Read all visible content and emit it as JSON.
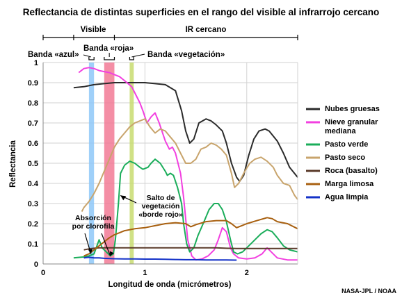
{
  "chart_data": {
    "type": "line",
    "title": "Reflectancia de distintas superficies en el rango del visible al infrarrojo cercano",
    "xlabel": "Longitud de onda (micrómetros)",
    "ylabel": "Reflectancia",
    "xlim": [
      0,
      2.5
    ],
    "ylim": [
      0,
      1
    ],
    "x_ticks": [
      "0",
      "1",
      "2"
    ],
    "y_ticks": [
      "0",
      "0.1",
      "0.2",
      "0.3",
      "0.4",
      "0.5",
      "0.6",
      "0.7",
      "0.8",
      "0.9",
      "1"
    ],
    "grid": true,
    "legend_position": "right",
    "regions": [
      {
        "label": "Visible",
        "from": 0.0,
        "to": 0.7
      },
      {
        "label": "IR cercano",
        "from": 0.7,
        "to": 2.5
      }
    ],
    "bands": [
      {
        "label": "Banda «azul»",
        "from": 0.45,
        "to": 0.5,
        "color": "#8ec8f8"
      },
      {
        "label": "Banda «roja»",
        "from": 0.6,
        "to": 0.7,
        "color": "#f27a95"
      },
      {
        "label": "Banda «vegetación»",
        "from": 0.85,
        "to": 0.89,
        "color": "#c8dc70"
      }
    ],
    "annotations": [
      {
        "text": [
          "Salto de",
          "vegetación",
          "«borde rojo»"
        ]
      },
      {
        "text": [
          "Absorción",
          "por clorofila"
        ]
      }
    ],
    "series": [
      {
        "name": "Nubes gruesas",
        "color": "#2b2b2b",
        "points": [
          [
            0.3,
            0.875
          ],
          [
            0.4,
            0.88
          ],
          [
            0.5,
            0.89
          ],
          [
            0.6,
            0.895
          ],
          [
            0.7,
            0.9
          ],
          [
            0.8,
            0.9
          ],
          [
            0.9,
            0.9
          ],
          [
            1.0,
            0.9
          ],
          [
            1.1,
            0.895
          ],
          [
            1.2,
            0.89
          ],
          [
            1.3,
            0.86
          ],
          [
            1.36,
            0.76
          ],
          [
            1.4,
            0.66
          ],
          [
            1.44,
            0.6
          ],
          [
            1.48,
            0.62
          ],
          [
            1.53,
            0.7
          ],
          [
            1.6,
            0.72
          ],
          [
            1.65,
            0.71
          ],
          [
            1.7,
            0.69
          ],
          [
            1.76,
            0.66
          ],
          [
            1.8,
            0.6
          ],
          [
            1.85,
            0.5
          ],
          [
            1.9,
            0.43
          ],
          [
            1.93,
            0.41
          ],
          [
            1.97,
            0.44
          ],
          [
            2.02,
            0.54
          ],
          [
            2.07,
            0.62
          ],
          [
            2.12,
            0.66
          ],
          [
            2.18,
            0.67
          ],
          [
            2.22,
            0.66
          ],
          [
            2.3,
            0.61
          ],
          [
            2.36,
            0.55
          ],
          [
            2.42,
            0.48
          ],
          [
            2.5,
            0.43
          ]
        ]
      },
      {
        "name": "Nieve granular mediana",
        "color": "#f240e0",
        "points": [
          [
            0.35,
            0.95
          ],
          [
            0.4,
            0.97
          ],
          [
            0.45,
            0.975
          ],
          [
            0.5,
            0.97
          ],
          [
            0.55,
            0.96
          ],
          [
            0.6,
            0.955
          ],
          [
            0.65,
            0.95
          ],
          [
            0.7,
            0.94
          ],
          [
            0.75,
            0.93
          ],
          [
            0.8,
            0.91
          ],
          [
            0.87,
            0.88
          ],
          [
            0.95,
            0.8
          ],
          [
            0.98,
            0.76
          ],
          [
            1.02,
            0.7
          ],
          [
            1.06,
            0.73
          ],
          [
            1.1,
            0.75
          ],
          [
            1.14,
            0.7
          ],
          [
            1.2,
            0.61
          ],
          [
            1.24,
            0.57
          ],
          [
            1.27,
            0.58
          ],
          [
            1.3,
            0.55
          ],
          [
            1.35,
            0.45
          ],
          [
            1.38,
            0.33
          ],
          [
            1.42,
            0.12
          ],
          [
            1.46,
            0.04
          ],
          [
            1.5,
            0.02
          ],
          [
            1.56,
            0.025
          ],
          [
            1.62,
            0.04
          ],
          [
            1.68,
            0.07
          ],
          [
            1.72,
            0.12
          ],
          [
            1.76,
            0.18
          ],
          [
            1.8,
            0.16
          ],
          [
            1.84,
            0.08
          ],
          [
            1.87,
            0.05
          ],
          [
            1.92,
            0.03
          ],
          [
            2.0,
            0.025
          ],
          [
            2.08,
            0.03
          ],
          [
            2.15,
            0.05
          ],
          [
            2.2,
            0.08
          ],
          [
            2.24,
            0.06
          ],
          [
            2.3,
            0.03
          ],
          [
            2.4,
            0.02
          ],
          [
            2.5,
            0.02
          ]
        ]
      },
      {
        "name": "Pasto verde",
        "color": "#1aad5a",
        "points": [
          [
            0.3,
            0.03
          ],
          [
            0.4,
            0.035
          ],
          [
            0.45,
            0.04
          ],
          [
            0.5,
            0.05
          ],
          [
            0.55,
            0.12
          ],
          [
            0.58,
            0.08
          ],
          [
            0.62,
            0.06
          ],
          [
            0.66,
            0.04
          ],
          [
            0.69,
            0.05
          ],
          [
            0.71,
            0.12
          ],
          [
            0.74,
            0.3
          ],
          [
            0.76,
            0.45
          ],
          [
            0.8,
            0.49
          ],
          [
            0.85,
            0.51
          ],
          [
            0.9,
            0.5
          ],
          [
            0.95,
            0.48
          ],
          [
            0.98,
            0.47
          ],
          [
            1.03,
            0.48
          ],
          [
            1.06,
            0.5
          ],
          [
            1.1,
            0.52
          ],
          [
            1.15,
            0.5
          ],
          [
            1.2,
            0.46
          ],
          [
            1.22,
            0.44
          ],
          [
            1.25,
            0.45
          ],
          [
            1.28,
            0.44
          ],
          [
            1.32,
            0.38
          ],
          [
            1.36,
            0.3
          ],
          [
            1.38,
            0.2
          ],
          [
            1.41,
            0.1
          ],
          [
            1.44,
            0.06
          ],
          [
            1.48,
            0.08
          ],
          [
            1.52,
            0.14
          ],
          [
            1.58,
            0.21
          ],
          [
            1.63,
            0.27
          ],
          [
            1.68,
            0.3
          ],
          [
            1.72,
            0.3
          ],
          [
            1.76,
            0.27
          ],
          [
            1.8,
            0.21
          ],
          [
            1.84,
            0.12
          ],
          [
            1.87,
            0.06
          ],
          [
            1.91,
            0.05
          ],
          [
            1.96,
            0.06
          ],
          [
            2.02,
            0.09
          ],
          [
            2.08,
            0.12
          ],
          [
            2.14,
            0.15
          ],
          [
            2.2,
            0.17
          ],
          [
            2.25,
            0.16
          ],
          [
            2.3,
            0.13
          ],
          [
            2.36,
            0.09
          ],
          [
            2.42,
            0.07
          ],
          [
            2.5,
            0.06
          ]
        ]
      },
      {
        "name": "Pasto seco",
        "color": "#c8a46c",
        "points": [
          [
            0.38,
            0.26
          ],
          [
            0.4,
            0.28
          ],
          [
            0.45,
            0.31
          ],
          [
            0.5,
            0.35
          ],
          [
            0.55,
            0.4
          ],
          [
            0.6,
            0.46
          ],
          [
            0.65,
            0.52
          ],
          [
            0.7,
            0.58
          ],
          [
            0.75,
            0.62
          ],
          [
            0.8,
            0.65
          ],
          [
            0.85,
            0.68
          ],
          [
            0.9,
            0.7
          ],
          [
            0.95,
            0.71
          ],
          [
            1.0,
            0.72
          ],
          [
            1.05,
            0.68
          ],
          [
            1.1,
            0.65
          ],
          [
            1.15,
            0.67
          ],
          [
            1.2,
            0.66
          ],
          [
            1.25,
            0.63
          ],
          [
            1.3,
            0.6
          ],
          [
            1.35,
            0.55
          ],
          [
            1.4,
            0.5
          ],
          [
            1.45,
            0.5
          ],
          [
            1.5,
            0.52
          ],
          [
            1.55,
            0.57
          ],
          [
            1.6,
            0.58
          ],
          [
            1.65,
            0.6
          ],
          [
            1.7,
            0.59
          ],
          [
            1.75,
            0.57
          ],
          [
            1.8,
            0.54
          ],
          [
            1.85,
            0.45
          ],
          [
            1.88,
            0.38
          ],
          [
            1.92,
            0.4
          ],
          [
            1.98,
            0.46
          ],
          [
            2.03,
            0.5
          ],
          [
            2.08,
            0.52
          ],
          [
            2.14,
            0.53
          ],
          [
            2.2,
            0.51
          ],
          [
            2.26,
            0.48
          ],
          [
            2.3,
            0.44
          ],
          [
            2.36,
            0.4
          ],
          [
            2.42,
            0.39
          ],
          [
            2.47,
            0.34
          ],
          [
            2.5,
            0.32
          ]
        ]
      },
      {
        "name": "Roca (basalto)",
        "color": "#5a3a2a",
        "points": [
          [
            0.4,
            0.07
          ],
          [
            0.45,
            0.075
          ],
          [
            0.5,
            0.078
          ],
          [
            0.55,
            0.08
          ],
          [
            0.6,
            0.08
          ],
          [
            0.7,
            0.08
          ],
          [
            0.8,
            0.08
          ],
          [
            0.9,
            0.08
          ],
          [
            1.0,
            0.08
          ],
          [
            1.1,
            0.08
          ],
          [
            1.2,
            0.08
          ],
          [
            1.3,
            0.08
          ],
          [
            1.4,
            0.08
          ],
          [
            1.5,
            0.08
          ],
          [
            1.6,
            0.08
          ],
          [
            1.7,
            0.08
          ],
          [
            1.8,
            0.078
          ],
          [
            1.9,
            0.077
          ],
          [
            2.0,
            0.077
          ],
          [
            2.1,
            0.077
          ],
          [
            2.2,
            0.077
          ],
          [
            2.3,
            0.077
          ],
          [
            2.4,
            0.077
          ],
          [
            2.5,
            0.077
          ]
        ]
      },
      {
        "name": "Marga limosa",
        "color": "#a86010",
        "points": [
          [
            0.4,
            0.04
          ],
          [
            0.45,
            0.05
          ],
          [
            0.5,
            0.07
          ],
          [
            0.55,
            0.09
          ],
          [
            0.6,
            0.11
          ],
          [
            0.65,
            0.13
          ],
          [
            0.7,
            0.145
          ],
          [
            0.75,
            0.155
          ],
          [
            0.8,
            0.165
          ],
          [
            0.9,
            0.175
          ],
          [
            1.0,
            0.18
          ],
          [
            1.1,
            0.19
          ],
          [
            1.2,
            0.2
          ],
          [
            1.3,
            0.205
          ],
          [
            1.4,
            0.2
          ],
          [
            1.45,
            0.185
          ],
          [
            1.5,
            0.195
          ],
          [
            1.6,
            0.21
          ],
          [
            1.7,
            0.215
          ],
          [
            1.8,
            0.215
          ],
          [
            1.85,
            0.2
          ],
          [
            1.9,
            0.18
          ],
          [
            1.95,
            0.19
          ],
          [
            2.0,
            0.2
          ],
          [
            2.1,
            0.215
          ],
          [
            2.2,
            0.23
          ],
          [
            2.25,
            0.225
          ],
          [
            2.3,
            0.21
          ],
          [
            2.4,
            0.2
          ],
          [
            2.5,
            0.175
          ]
        ]
      },
      {
        "name": "Agua limpia",
        "color": "#1432c8",
        "points": [
          [
            0.4,
            0.03
          ],
          [
            0.45,
            0.033
          ],
          [
            0.5,
            0.03
          ],
          [
            0.55,
            0.03
          ],
          [
            0.6,
            0.028
          ],
          [
            0.7,
            0.026
          ],
          [
            0.8,
            0.025
          ],
          [
            0.9,
            0.025
          ],
          [
            1.0,
            0.024
          ],
          [
            1.1,
            0.024
          ],
          [
            1.2,
            0.023
          ],
          [
            1.3,
            0.022
          ],
          [
            1.4,
            0.021
          ],
          [
            1.5,
            0.021
          ],
          [
            1.6,
            0.02
          ],
          [
            1.7,
            0.02
          ],
          [
            1.8,
            0.02
          ],
          [
            1.9,
            0.019
          ]
        ]
      }
    ]
  },
  "credit": "NASA-JPL / NOAA"
}
